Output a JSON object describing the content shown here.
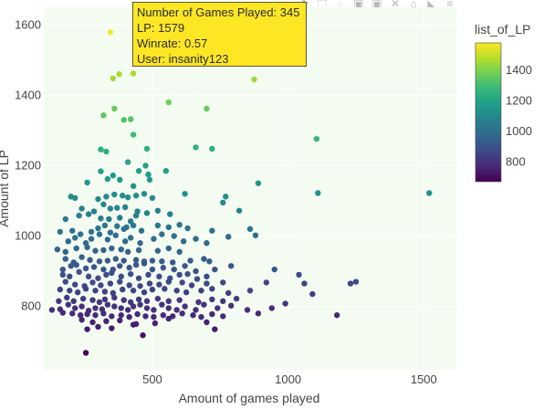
{
  "toolbar": {
    "icons": [
      "camera-icon",
      "zoom-icon",
      "pan-icon",
      "box-select-icon",
      "lasso-icon",
      "zoom-in-icon",
      "zoom-out-icon",
      "autoscale-icon",
      "reset-axes-icon",
      "spike-icon",
      "compare-icon",
      "plotly-logo-icon"
    ]
  },
  "tooltip": {
    "line1": "Number of Games Played: 345",
    "line2": "LP: 1579",
    "line3": "Winrate: 0.57",
    "line4": "User: insanity123"
  },
  "colors": {
    "plot_bg": "#f4fbf1",
    "grid": "#ffffff",
    "tooltip_bg": "#fde725"
  },
  "chart_data": {
    "type": "scatter",
    "title": "",
    "xlabel": "Amount of games played",
    "ylabel": "Amount of LP",
    "xlim": [
      100,
      1620
    ],
    "ylim": [
      620,
      1650
    ],
    "xticks": [
      500,
      1000,
      1500
    ],
    "yticks": [
      800,
      1000,
      1200,
      1400,
      1600
    ],
    "grid": true,
    "colorbar": {
      "title": "list_of_LP",
      "colorscale": "viridis",
      "range": [
        670,
        1580
      ],
      "ticks": [
        800,
        1000,
        1200,
        1400
      ]
    },
    "points": [
      [
        345,
        1579
      ],
      [
        875,
        1445
      ],
      [
        355,
        1448
      ],
      [
        378,
        1460
      ],
      [
        430,
        1462
      ],
      [
        560,
        1380
      ],
      [
        700,
        1362
      ],
      [
        360,
        1362
      ],
      [
        320,
        1343
      ],
      [
        395,
        1330
      ],
      [
        420,
        1332
      ],
      [
        430,
        1288
      ],
      [
        310,
        1246
      ],
      [
        330,
        1240
      ],
      [
        480,
        1248
      ],
      [
        660,
        1252
      ],
      [
        720,
        1248
      ],
      [
        1105,
        1276
      ],
      [
        310,
        1184
      ],
      [
        410,
        1210
      ],
      [
        450,
        1185
      ],
      [
        475,
        1200
      ],
      [
        485,
        1175
      ],
      [
        550,
        1185
      ],
      [
        490,
        1160
      ],
      [
        335,
        1162
      ],
      [
        355,
        1172
      ],
      [
        380,
        1160
      ],
      [
        260,
        1152
      ],
      [
        430,
        1142
      ],
      [
        890,
        1150
      ],
      [
        200,
        1112
      ],
      [
        215,
        1108
      ],
      [
        300,
        1105
      ],
      [
        330,
        1112
      ],
      [
        360,
        1118
      ],
      [
        390,
        1115
      ],
      [
        410,
        1110
      ],
      [
        440,
        1115
      ],
      [
        470,
        1120
      ],
      [
        500,
        1108
      ],
      [
        620,
        1120
      ],
      [
        770,
        1112
      ],
      [
        1110,
        1122
      ],
      [
        1520,
        1122
      ],
      [
        240,
        1078
      ],
      [
        285,
        1070
      ],
      [
        320,
        1090
      ],
      [
        345,
        1078
      ],
      [
        370,
        1080
      ],
      [
        400,
        1082
      ],
      [
        445,
        1070
      ],
      [
        480,
        1065
      ],
      [
        520,
        1072
      ],
      [
        565,
        1062
      ],
      [
        760,
        1095
      ],
      [
        820,
        1072
      ],
      [
        230,
        1058
      ],
      [
        265,
        1062
      ],
      [
        310,
        1050
      ],
      [
        340,
        1048
      ],
      [
        380,
        1052
      ],
      [
        420,
        1042
      ],
      [
        440,
        1058
      ],
      [
        180,
        1048
      ],
      [
        160,
        1012
      ],
      [
        205,
        1015
      ],
      [
        235,
        1005
      ],
      [
        275,
        1012
      ],
      [
        300,
        1022
      ],
      [
        325,
        1030
      ],
      [
        345,
        1010
      ],
      [
        370,
        1028
      ],
      [
        395,
        1020
      ],
      [
        405,
        1025
      ],
      [
        430,
        1030
      ],
      [
        460,
        1015
      ],
      [
        520,
        1030
      ],
      [
        560,
        1025
      ],
      [
        600,
        1032
      ],
      [
        630,
        1022
      ],
      [
        720,
        1015
      ],
      [
        860,
        1020
      ],
      [
        880,
        1002
      ],
      [
        190,
        985
      ],
      [
        215,
        995
      ],
      [
        255,
        980
      ],
      [
        275,
        992
      ],
      [
        305,
        1005
      ],
      [
        335,
        990
      ],
      [
        365,
        1002
      ],
      [
        400,
        985
      ],
      [
        420,
        995
      ],
      [
        455,
        980
      ],
      [
        505,
        992
      ],
      [
        535,
        1005
      ],
      [
        580,
        1000
      ],
      [
        615,
        985
      ],
      [
        660,
        992
      ],
      [
        700,
        980
      ],
      [
        780,
        998
      ],
      [
        150,
        962
      ],
      [
        180,
        955
      ],
      [
        220,
        965
      ],
      [
        260,
        968
      ],
      [
        290,
        958
      ],
      [
        320,
        960
      ],
      [
        350,
        965
      ],
      [
        385,
        962
      ],
      [
        410,
        955
      ],
      [
        450,
        960
      ],
      [
        520,
        958
      ],
      [
        560,
        965
      ],
      [
        600,
        955
      ],
      [
        180,
        935
      ],
      [
        210,
        925
      ],
      [
        240,
        940
      ],
      [
        270,
        932
      ],
      [
        305,
        928
      ],
      [
        335,
        930
      ],
      [
        365,
        935
      ],
      [
        395,
        930
      ],
      [
        440,
        932
      ],
      [
        470,
        928
      ],
      [
        500,
        930
      ],
      [
        535,
        928
      ],
      [
        575,
        925
      ],
      [
        640,
        930
      ],
      [
        690,
        935
      ],
      [
        710,
        928
      ],
      [
        170,
        905
      ],
      [
        200,
        915
      ],
      [
        220,
        918
      ],
      [
        255,
        908
      ],
      [
        285,
        912
      ],
      [
        320,
        905
      ],
      [
        355,
        905
      ],
      [
        380,
        915
      ],
      [
        415,
        910
      ],
      [
        440,
        918
      ],
      [
        470,
        922
      ],
      [
        500,
        905
      ],
      [
        540,
        910
      ],
      [
        580,
        905
      ],
      [
        620,
        915
      ],
      [
        660,
        900
      ],
      [
        730,
        905
      ],
      [
        790,
        915
      ],
      [
        950,
        905
      ],
      [
        170,
        890
      ],
      [
        195,
        885
      ],
      [
        230,
        898
      ],
      [
        265,
        885
      ],
      [
        300,
        880
      ],
      [
        330,
        890
      ],
      [
        350,
        895
      ],
      [
        385,
        885
      ],
      [
        420,
        892
      ],
      [
        450,
        880
      ],
      [
        485,
        890
      ],
      [
        525,
        885
      ],
      [
        565,
        880
      ],
      [
        600,
        890
      ],
      [
        630,
        892
      ],
      [
        665,
        878
      ],
      [
        700,
        885
      ],
      [
        1040,
        890
      ],
      [
        1250,
        870
      ],
      [
        180,
        870
      ],
      [
        215,
        862
      ],
      [
        250,
        858
      ],
      [
        280,
        868
      ],
      [
        310,
        860
      ],
      [
        345,
        865
      ],
      [
        380,
        870
      ],
      [
        415,
        860
      ],
      [
        455,
        858
      ],
      [
        490,
        865
      ],
      [
        525,
        862
      ],
      [
        560,
        870
      ],
      [
        610,
        868
      ],
      [
        645,
        860
      ],
      [
        700,
        865
      ],
      [
        760,
        868
      ],
      [
        920,
        868
      ],
      [
        1060,
        865
      ],
      [
        1230,
        865
      ],
      [
        160,
        848
      ],
      [
        195,
        845
      ],
      [
        225,
        840
      ],
      [
        255,
        850
      ],
      [
        290,
        845
      ],
      [
        325,
        842
      ],
      [
        355,
        838
      ],
      [
        390,
        848
      ],
      [
        430,
        845
      ],
      [
        470,
        840
      ],
      [
        500,
        848
      ],
      [
        545,
        850
      ],
      [
        590,
        845
      ],
      [
        625,
        840
      ],
      [
        680,
        845
      ],
      [
        720,
        850
      ],
      [
        780,
        838
      ],
      [
        860,
        845
      ],
      [
        1090,
        835
      ],
      [
        155,
        815
      ],
      [
        185,
        825
      ],
      [
        210,
        815
      ],
      [
        245,
        822
      ],
      [
        280,
        818
      ],
      [
        305,
        812
      ],
      [
        325,
        820
      ],
      [
        360,
        825
      ],
      [
        395,
        818
      ],
      [
        420,
        812
      ],
      [
        450,
        820
      ],
      [
        480,
        815
      ],
      [
        520,
        822
      ],
      [
        560,
        815
      ],
      [
        600,
        818
      ],
      [
        670,
        812
      ],
      [
        720,
        820
      ],
      [
        760,
        815
      ],
      [
        810,
        822
      ],
      [
        990,
        808
      ],
      [
        130,
        790
      ],
      [
        160,
        792
      ],
      [
        190,
        805
      ],
      [
        215,
        795
      ],
      [
        240,
        800
      ],
      [
        265,
        788
      ],
      [
        290,
        795
      ],
      [
        315,
        792
      ],
      [
        335,
        805
      ],
      [
        360,
        800
      ],
      [
        385,
        795
      ],
      [
        410,
        790
      ],
      [
        430,
        800
      ],
      [
        455,
        805
      ],
      [
        480,
        795
      ],
      [
        505,
        790
      ],
      [
        535,
        805
      ],
      [
        560,
        795
      ],
      [
        590,
        790
      ],
      [
        620,
        800
      ],
      [
        660,
        790
      ],
      [
        690,
        805
      ],
      [
        740,
        795
      ],
      [
        790,
        802
      ],
      [
        850,
        790
      ],
      [
        940,
        795
      ],
      [
        170,
        782
      ],
      [
        205,
        780
      ],
      [
        235,
        775
      ],
      [
        260,
        778
      ],
      [
        290,
        775
      ],
      [
        320,
        780
      ],
      [
        350,
        772
      ],
      [
        385,
        775
      ],
      [
        415,
        770
      ],
      [
        445,
        778
      ],
      [
        475,
        772
      ],
      [
        505,
        770
      ],
      [
        540,
        775
      ],
      [
        575,
        772
      ],
      [
        610,
        780
      ],
      [
        650,
        775
      ],
      [
        680,
        770
      ],
      [
        720,
        778
      ],
      [
        760,
        772
      ],
      [
        890,
        780
      ],
      [
        1180,
        775
      ],
      [
        240,
        762
      ],
      [
        280,
        755
      ],
      [
        330,
        758
      ],
      [
        380,
        760
      ],
      [
        440,
        750
      ],
      [
        510,
        752
      ],
      [
        560,
        765
      ],
      [
        700,
        755
      ],
      [
        260,
        735
      ],
      [
        300,
        742
      ],
      [
        350,
        738
      ],
      [
        430,
        748
      ],
      [
        465,
        718
      ],
      [
        730,
        735
      ],
      [
        255,
        668
      ]
    ]
  }
}
